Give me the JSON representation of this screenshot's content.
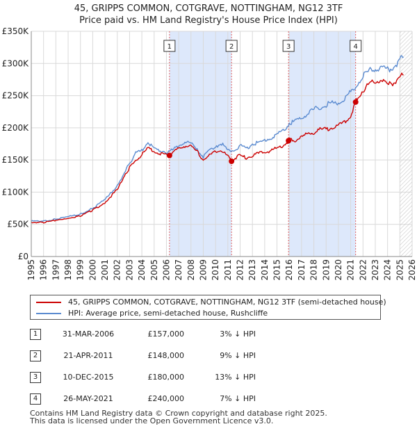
{
  "title_line1": "45, GRIPPS COMMON, COTGRAVE, NOTTINGHAM, NG12 3TF",
  "title_line2": "Price paid vs. HM Land Registry's House Price Index (HPI)",
  "colors": {
    "price": "#cc0000",
    "hpi": "#5b8bd0",
    "shade": "#dde8fb",
    "marker": "#cc0000"
  },
  "legend": {
    "price_label": "45, GRIPPS COMMON, COTGRAVE, NOTTINGHAM, NG12 3TF (semi-detached house)",
    "hpi_label": "HPI: Average price, semi-detached house, Rushcliffe"
  },
  "transactions": [
    {
      "num": "1",
      "date": "31-MAR-2006",
      "price": "£157,000",
      "hpi": "3% ↓ HPI"
    },
    {
      "num": "2",
      "date": "21-APR-2011",
      "price": "£148,000",
      "hpi": "9% ↓ HPI"
    },
    {
      "num": "3",
      "date": "10-DEC-2015",
      "price": "£180,000",
      "hpi": "13% ↓ HPI"
    },
    {
      "num": "4",
      "date": "26-MAY-2021",
      "price": "£240,000",
      "hpi": "7% ↓ HPI"
    }
  ],
  "footer_line1": "Contains HM Land Registry data © Crown copyright and database right 2025.",
  "footer_line2": "This data is licensed under the Open Government Licence v3.0.",
  "chart_data": {
    "type": "line",
    "title": "45, GRIPPS COMMON, COTGRAVE, NOTTINGHAM, NG12 3TF — Price paid vs. HM Land Registry's House Price Index (HPI)",
    "xlabel": "",
    "ylabel": "",
    "xlim": [
      1995,
      2026
    ],
    "ylim": [
      0,
      350000
    ],
    "y_ticks": [
      0,
      50000,
      100000,
      150000,
      200000,
      250000,
      300000,
      350000
    ],
    "y_tick_labels": [
      "£0",
      "£50K",
      "£100K",
      "£150K",
      "£200K",
      "£250K",
      "£300K",
      "£350K"
    ],
    "x_ticks": [
      1995,
      1996,
      1997,
      1998,
      1999,
      2000,
      2001,
      2002,
      2003,
      2004,
      2005,
      2006,
      2007,
      2008,
      2009,
      2010,
      2011,
      2012,
      2013,
      2014,
      2015,
      2016,
      2017,
      2018,
      2019,
      2020,
      2021,
      2022,
      2023,
      2024,
      2025,
      2026
    ],
    "grid": true,
    "legend_position": "bottom",
    "shaded_periods": [
      [
        2006.25,
        2011.3
      ],
      [
        2015.94,
        2021.4
      ]
    ],
    "hatched_after": 2025.0,
    "series": [
      {
        "name": "HPI: Average price, semi-detached house, Rushcliffe",
        "x": [
          1995.0,
          1996.0,
          1997.0,
          1998.0,
          1999.0,
          2000.0,
          2001.0,
          2002.0,
          2003.0,
          2003.5,
          2004.0,
          2004.5,
          2005.0,
          2005.5,
          2006.0,
          2006.5,
          2007.0,
          2007.5,
          2008.0,
          2008.5,
          2009.0,
          2009.5,
          2010.0,
          2010.5,
          2011.0,
          2011.5,
          2012.0,
          2012.5,
          2013.0,
          2013.5,
          2014.0,
          2014.5,
          2015.0,
          2015.5,
          2016.0,
          2016.5,
          2017.0,
          2017.5,
          2018.0,
          2018.5,
          2019.0,
          2019.5,
          2020.0,
          2020.5,
          2021.0,
          2021.5,
          2022.0,
          2022.5,
          2023.0,
          2023.5,
          2024.0,
          2024.5,
          2025.0,
          2025.3
        ],
        "values": [
          55000,
          55000,
          58000,
          62000,
          66000,
          75000,
          88000,
          110000,
          145000,
          160000,
          165000,
          178000,
          167000,
          165000,
          162000,
          165000,
          172000,
          178000,
          175000,
          168000,
          155000,
          165000,
          172000,
          175000,
          164000,
          165000,
          172000,
          168000,
          175000,
          177000,
          180000,
          185000,
          190000,
          195000,
          207000,
          210000,
          215000,
          222000,
          228000,
          232000,
          236000,
          238000,
          240000,
          245000,
          255000,
          268000,
          280000,
          288000,
          292000,
          292000,
          290000,
          295000,
          305000,
          310000
        ]
      },
      {
        "name": "45, GRIPPS COMMON, COTGRAVE, NOTTINGHAM, NG12 3TF (semi-detached house)",
        "x": [
          1995.0,
          1996.0,
          1997.0,
          1998.0,
          1999.0,
          2000.0,
          2001.0,
          2002.0,
          2003.0,
          2003.5,
          2004.0,
          2004.5,
          2005.0,
          2005.5,
          2006.0,
          2006.25,
          2006.5,
          2007.0,
          2007.5,
          2008.0,
          2008.5,
          2009.0,
          2009.5,
          2010.0,
          2010.5,
          2011.0,
          2011.3,
          2011.5,
          2012.0,
          2012.5,
          2013.0,
          2013.5,
          2014.0,
          2014.5,
          2015.0,
          2015.5,
          2015.94,
          2016.0,
          2016.5,
          2017.0,
          2017.5,
          2018.0,
          2018.5,
          2019.0,
          2019.5,
          2020.0,
          2020.5,
          2021.0,
          2021.4,
          2021.5,
          2022.0,
          2022.5,
          2023.0,
          2023.5,
          2024.0,
          2024.5,
          2025.0,
          2025.3
        ],
        "values": [
          53000,
          53000,
          56000,
          60000,
          63000,
          72000,
          84000,
          104000,
          138000,
          150000,
          158000,
          168000,
          163000,
          160000,
          158000,
          157000,
          160000,
          168000,
          172000,
          170000,
          163000,
          150000,
          157000,
          163000,
          165000,
          155000,
          148000,
          152000,
          157000,
          153000,
          157000,
          160000,
          162000,
          165000,
          168000,
          172000,
          180000,
          183000,
          180000,
          186000,
          190000,
          193000,
          197000,
          198000,
          201000,
          203000,
          208000,
          218000,
          240000,
          245000,
          258000,
          268000,
          272000,
          275000,
          266000,
          270000,
          280000,
          282000
        ]
      }
    ],
    "sale_markers": [
      {
        "label": "1",
        "x": 2006.25,
        "value": 157000
      },
      {
        "label": "2",
        "x": 2011.3,
        "value": 148000
      },
      {
        "label": "3",
        "x": 2015.94,
        "value": 180000
      },
      {
        "label": "4",
        "x": 2021.4,
        "value": 240000
      }
    ]
  }
}
